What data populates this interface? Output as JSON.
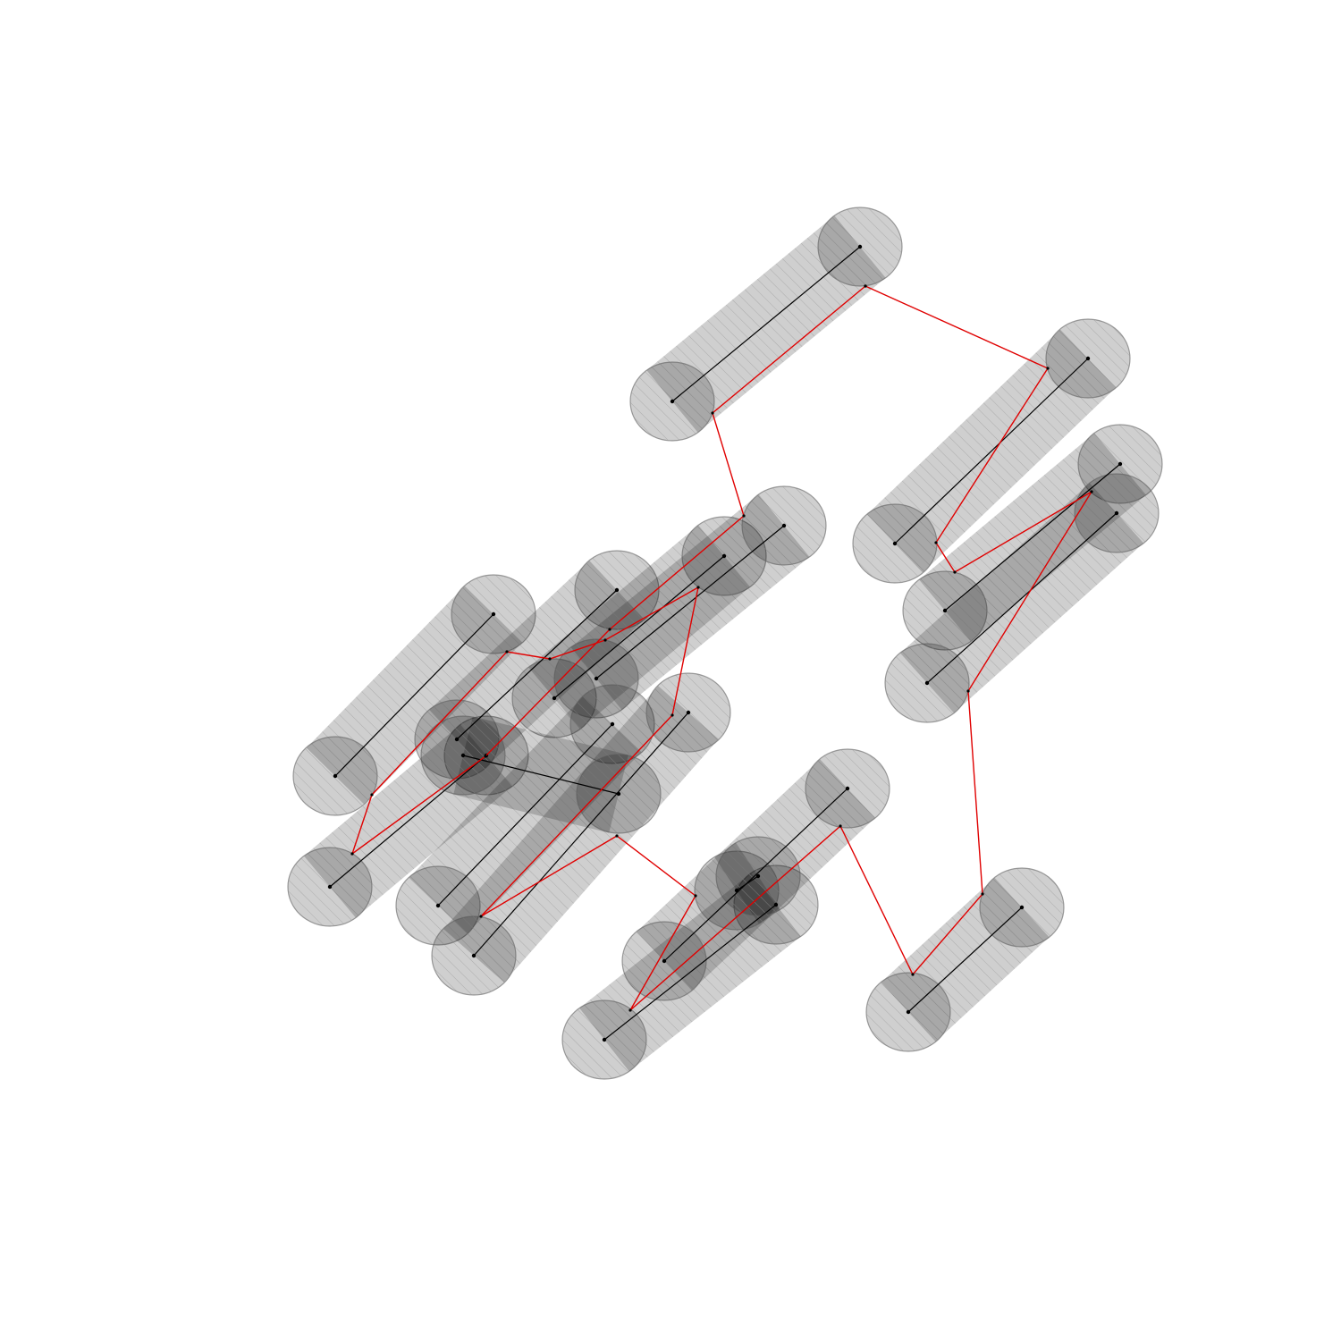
{
  "colors": {
    "capsule_fill": "#bdbdbd",
    "hatch": "#8c8c8c",
    "axis": "#000000",
    "path": "#e00000",
    "background": "#ffffff"
  },
  "capsules": [
    {
      "id": "c01",
      "from": [
        752,
        449
      ],
      "to": [
        962,
        276
      ]
    },
    {
      "id": "c02",
      "from": [
        1001,
        608
      ],
      "to": [
        1217,
        401
      ]
    },
    {
      "id": "c03",
      "from": [
        1057,
        683
      ],
      "to": [
        1253,
        519
      ]
    },
    {
      "id": "c04",
      "from": [
        1037,
        764
      ],
      "to": [
        1249,
        574
      ]
    },
    {
      "id": "c05",
      "from": [
        375,
        868
      ],
      "to": [
        552,
        687
      ]
    },
    {
      "id": "c06",
      "from": [
        369,
        992
      ],
      "to": [
        544,
        845
      ]
    },
    {
      "id": "c07",
      "from": [
        511,
        827
      ],
      "to": [
        690,
        660
      ]
    },
    {
      "id": "c08",
      "from": [
        620,
        781
      ],
      "to": [
        810,
        622
      ]
    },
    {
      "id": "c09",
      "from": [
        667,
        759
      ],
      "to": [
        877,
        588
      ]
    },
    {
      "id": "c10",
      "from": [
        490,
        1013
      ],
      "to": [
        685,
        810
      ]
    },
    {
      "id": "c11",
      "from": [
        530,
        1069
      ],
      "to": [
        770,
        797
      ]
    },
    {
      "id": "c12",
      "from": [
        518,
        845
      ],
      "to": [
        692,
        888
      ]
    },
    {
      "id": "c13",
      "from": [
        676,
        1163
      ],
      "to": [
        868,
        1012
      ]
    },
    {
      "id": "c14",
      "from": [
        743,
        1075
      ],
      "to": [
        948,
        882
      ]
    },
    {
      "id": "c15",
      "from": [
        824,
        996
      ],
      "to": [
        848,
        980
      ]
    },
    {
      "id": "c16",
      "from": [
        1016,
        1132
      ],
      "to": [
        1143,
        1015
      ]
    }
  ],
  "path_points": [
    [
      968,
      320
    ],
    [
      1172,
      412
    ],
    [
      1047,
      607
    ],
    [
      1068,
      640
    ],
    [
      1221,
      550
    ],
    [
      1083,
      773
    ],
    [
      1099,
      1000
    ],
    [
      1021,
      1090
    ],
    [
      940,
      924
    ],
    [
      705,
      1130
    ],
    [
      778,
      1002
    ],
    [
      690,
      935
    ],
    [
      538,
      1025
    ],
    [
      752,
      800
    ],
    [
      781,
      657
    ],
    [
      677,
      716
    ],
    [
      615,
      737
    ],
    [
      567,
      729
    ],
    [
      416,
      889
    ],
    [
      394,
      955
    ],
    [
      543,
      846
    ],
    [
      682,
      704
    ],
    [
      832,
      577
    ],
    [
      797,
      462
    ],
    [
      968,
      320
    ]
  ]
}
